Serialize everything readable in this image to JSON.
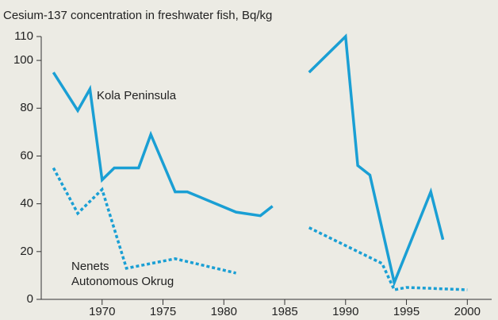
{
  "chart_data": {
    "type": "line",
    "title": "Cesium-137 concentration in freshwater fish, Bq/kg",
    "series": [
      {
        "name": "Kola Peninsula",
        "color": "#1a9fd4",
        "dash": "solid",
        "x": [
          1966,
          1968,
          1969,
          1970,
          1971,
          1973,
          1974,
          1976,
          1977,
          1981,
          1983,
          1984,
          1986,
          1987,
          1990,
          1991,
          1992,
          1994,
          1997,
          1998
        ],
        "values": [
          95,
          79,
          88,
          50,
          55,
          55,
          69,
          45,
          45,
          36.5,
          35,
          39,
          null,
          95,
          110,
          56,
          52,
          7,
          45,
          25
        ]
      },
      {
        "name": "Nenets Autonomous Okrug",
        "color": "#1a9fd4",
        "dash": "dotted",
        "x": [
          1966,
          1968,
          1970,
          1972,
          1976,
          1981,
          1986,
          1987,
          1993,
          1994,
          1995,
          2000
        ],
        "values": [
          55,
          36,
          46,
          13,
          17,
          11,
          null,
          30,
          15,
          4,
          5,
          4
        ]
      }
    ],
    "annotations": [
      "Kola Peninsula",
      "Nenets",
      "Autonomous Okrug"
    ],
    "xlim": [
      1965,
      2002
    ],
    "xticks": [
      1970,
      1975,
      1980,
      1985,
      1990,
      1995,
      2000
    ],
    "ylim": [
      0,
      110
    ],
    "yticks": [
      0,
      20,
      40,
      60,
      80,
      100,
      110
    ]
  }
}
